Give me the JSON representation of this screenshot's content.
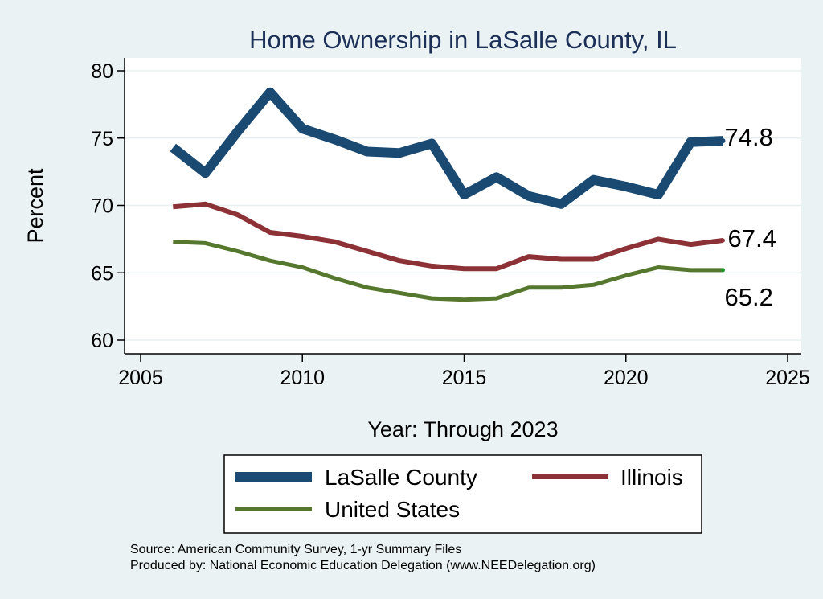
{
  "chart_data": {
    "type": "line",
    "title": "Home Ownership in LaSalle County, IL",
    "xlabel": "Year: Through 2023",
    "ylabel": "Percent",
    "xlim": [
      2005,
      2025
    ],
    "ylim": [
      60,
      80
    ],
    "x_ticks": [
      2005,
      2010,
      2015,
      2020,
      2025
    ],
    "y_ticks": [
      60,
      65,
      70,
      75,
      80
    ],
    "grid": true,
    "legend_position": "bottom",
    "colors": {
      "background": "#eaf2f3",
      "plot_background": "#ffffff",
      "title": "#1b2f57",
      "gridline": "#e8eff0"
    },
    "series": [
      {
        "name": "LaSalle County",
        "color": "#1a4a72",
        "x": [
          2006,
          2007,
          2008,
          2009,
          2010,
          2011,
          2012,
          2013,
          2014,
          2015,
          2016,
          2017,
          2018,
          2019,
          2020,
          2021,
          2022,
          2023
        ],
        "values": [
          74.3,
          72.4,
          75.5,
          78.4,
          75.7,
          74.9,
          74.0,
          73.9,
          74.6,
          70.8,
          72.1,
          70.7,
          70.1,
          71.9,
          71.4,
          70.8,
          74.7,
          74.8
        ],
        "end_label": "74.8"
      },
      {
        "name": "Illinois",
        "color": "#8c3237",
        "x": [
          2006,
          2007,
          2008,
          2009,
          2010,
          2011,
          2012,
          2013,
          2014,
          2015,
          2016,
          2017,
          2018,
          2019,
          2020,
          2021,
          2022,
          2023
        ],
        "values": [
          69.9,
          70.1,
          69.3,
          68.0,
          67.7,
          67.3,
          66.6,
          65.9,
          65.5,
          65.3,
          65.3,
          66.2,
          66.0,
          66.0,
          66.8,
          67.5,
          67.1,
          67.4
        ],
        "end_label": "67.4"
      },
      {
        "name": "United States",
        "color": "#56782e",
        "x": [
          2006,
          2007,
          2008,
          2009,
          2010,
          2011,
          2012,
          2013,
          2014,
          2015,
          2016,
          2017,
          2018,
          2019,
          2020,
          2021,
          2022,
          2023
        ],
        "values": [
          67.3,
          67.2,
          66.6,
          65.9,
          65.4,
          64.6,
          63.9,
          63.5,
          63.1,
          63.0,
          63.1,
          63.9,
          63.9,
          64.1,
          64.8,
          65.4,
          65.2,
          65.2
        ],
        "end_label": "65.2"
      }
    ],
    "notes": [
      "Source: American Community Survey, 1-yr Summary Files",
      "Produced by: National Economic Education Delegation (www.NEEDelegation.org)"
    ]
  }
}
